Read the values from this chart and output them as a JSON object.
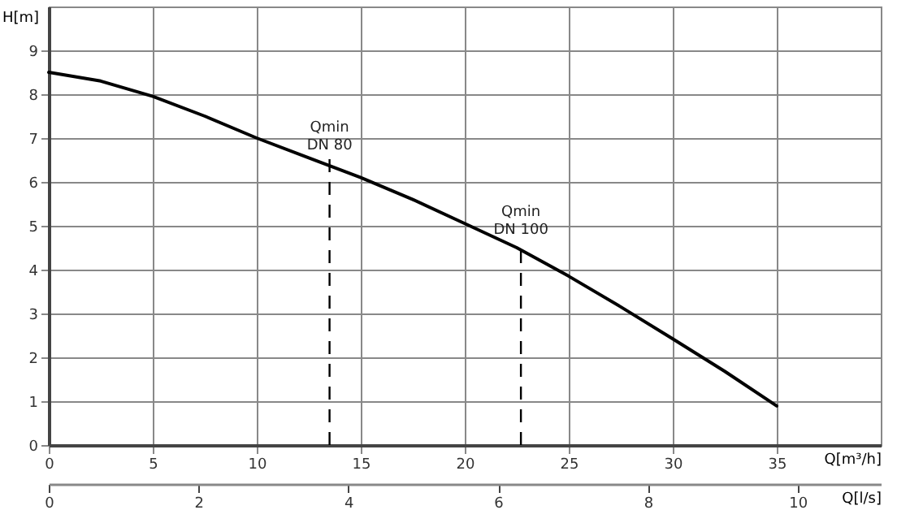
{
  "chart_data": {
    "type": "line",
    "xlabel": "Q[m³/h]",
    "ylabel": "H[m]",
    "x2label": "Q[l/s]",
    "x": [
      0,
      2.5,
      5,
      7.5,
      10,
      12.5,
      15,
      17.5,
      20,
      22.5,
      25,
      27.5,
      30,
      32.5,
      35
    ],
    "series": [
      {
        "color": "#000000",
        "values": [
          8.5,
          8.3,
          7.95,
          7.5,
          7.0,
          6.55,
          6.1,
          5.6,
          5.05,
          4.5,
          3.85,
          3.15,
          2.42,
          1.68,
          0.89
        ]
      }
    ],
    "xlim": [
      0,
      40
    ],
    "ylim": [
      0,
      10
    ],
    "xticks": [
      0,
      5,
      10,
      15,
      20,
      25,
      30,
      35
    ],
    "yticks": [
      0,
      1,
      2,
      3,
      4,
      5,
      6,
      7,
      8,
      9
    ],
    "x2lim": [
      0,
      11.11
    ],
    "x2ticks": [
      0,
      2,
      4,
      6,
      8,
      10
    ],
    "grid": true,
    "line_style": "solid",
    "ref_lines": [
      {
        "axis": "x",
        "value": 13.5,
        "label": "Qmin\nDN 80",
        "line_style": "dashed"
      },
      {
        "axis": "x",
        "value": 22.7,
        "label": "Qmin\nDN 100",
        "line_style": "dashed"
      }
    ]
  }
}
